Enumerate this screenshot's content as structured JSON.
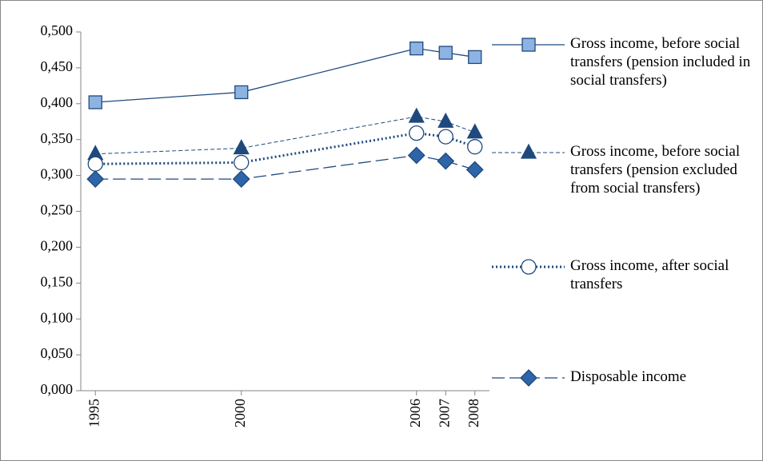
{
  "chart_data": {
    "type": "line",
    "x": [
      1995,
      2000,
      2006,
      2007,
      2008
    ],
    "xlim": [
      1994.5,
      2008.5
    ],
    "xticks": [
      1995,
      2000,
      2006,
      2007,
      2008
    ],
    "ylim": [
      0,
      0.5
    ],
    "yticks": [
      {
        "value": 0,
        "label": "0,000"
      },
      {
        "value": 0.05,
        "label": "0,050"
      },
      {
        "value": 0.1,
        "label": "0,100"
      },
      {
        "value": 0.15,
        "label": "0,150"
      },
      {
        "value": 0.2,
        "label": "0,200"
      },
      {
        "value": 0.25,
        "label": "0,250"
      },
      {
        "value": 0.3,
        "label": "0,300"
      },
      {
        "value": 0.35,
        "label": "0,350"
      },
      {
        "value": 0.4,
        "label": "0,400"
      },
      {
        "value": 0.45,
        "label": "0,450"
      },
      {
        "value": 0.5,
        "label": "0,500"
      }
    ],
    "grid": false,
    "legend": "right",
    "series": [
      {
        "name": "Gross income, before social transfers (pension included  in social transfers)",
        "color": "#1f497d",
        "marker": "square",
        "marker_fill": "#8db3e2",
        "dash": "solid",
        "values": [
          0.402,
          0.416,
          0.477,
          0.471,
          0.465
        ]
      },
      {
        "name": "Gross income, before social transfers (pension excluded from social transfers)",
        "color": "#1f497d",
        "marker": "triangle",
        "marker_fill": "#1f497d",
        "dash": "short",
        "values": [
          0.33,
          0.338,
          0.382,
          0.375,
          0.36
        ]
      },
      {
        "name": "Gross income, after social transfers",
        "color": "#1f497d",
        "marker": "circle",
        "marker_fill": "#ffffff",
        "dash": "dot",
        "values": [
          0.316,
          0.318,
          0.359,
          0.354,
          0.34
        ]
      },
      {
        "name": "Disposable income",
        "color": "#1f497d",
        "marker": "diamond",
        "marker_fill": "#2e64a8",
        "dash": "long",
        "values": [
          0.295,
          0.295,
          0.328,
          0.32,
          0.308
        ]
      }
    ]
  }
}
